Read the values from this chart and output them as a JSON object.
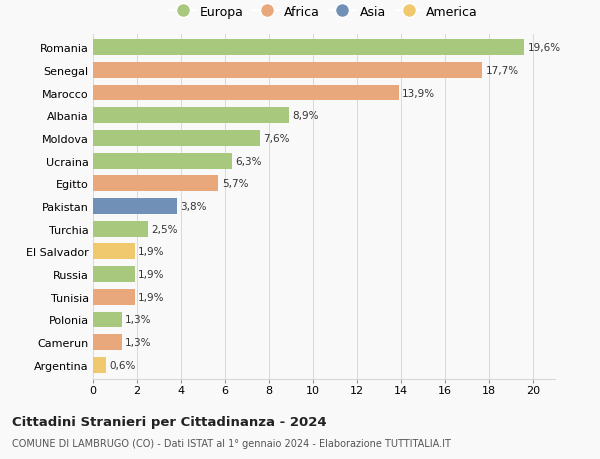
{
  "categories": [
    "Romania",
    "Senegal",
    "Marocco",
    "Albania",
    "Moldova",
    "Ucraina",
    "Egitto",
    "Pakistan",
    "Turchia",
    "El Salvador",
    "Russia",
    "Tunisia",
    "Polonia",
    "Camerun",
    "Argentina"
  ],
  "values": [
    19.6,
    17.7,
    13.9,
    8.9,
    7.6,
    6.3,
    5.7,
    3.8,
    2.5,
    1.9,
    1.9,
    1.9,
    1.3,
    1.3,
    0.6
  ],
  "labels": [
    "19,6%",
    "17,7%",
    "13,9%",
    "8,9%",
    "7,6%",
    "6,3%",
    "5,7%",
    "3,8%",
    "2,5%",
    "1,9%",
    "1,9%",
    "1,9%",
    "1,3%",
    "1,3%",
    "0,6%"
  ],
  "colors": [
    "#a8c87e",
    "#e8a87c",
    "#e8a87c",
    "#a8c87e",
    "#a8c87e",
    "#a8c87e",
    "#e8a87c",
    "#7090b8",
    "#a8c87e",
    "#f0c96e",
    "#a8c87e",
    "#e8a87c",
    "#a8c87e",
    "#e8a87c",
    "#f0c96e"
  ],
  "legend_labels": [
    "Europa",
    "Africa",
    "Asia",
    "America"
  ],
  "legend_colors": [
    "#a8c87e",
    "#e8a87c",
    "#7090b8",
    "#f0c96e"
  ],
  "title": "Cittadini Stranieri per Cittadinanza - 2024",
  "subtitle": "COMUNE DI LAMBRUGO (CO) - Dati ISTAT al 1° gennaio 2024 - Elaborazione TUTTITALIA.IT",
  "xlim": [
    0,
    21
  ],
  "xticks": [
    0,
    2,
    4,
    6,
    8,
    10,
    12,
    14,
    16,
    18,
    20
  ],
  "background_color": "#f9f9f9",
  "grid_color": "#d8d8d8"
}
